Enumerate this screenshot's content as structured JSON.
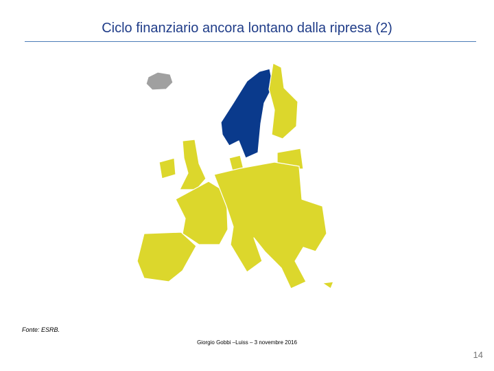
{
  "header": {
    "title": "Ciclo finanziario ancora lontano dalla ripresa (2)"
  },
  "source": "Fonte: ESRB.",
  "footer": {
    "author": "Giorgio Gobbi –Luiss – 3 novembre 2016",
    "page": "14"
  }
}
